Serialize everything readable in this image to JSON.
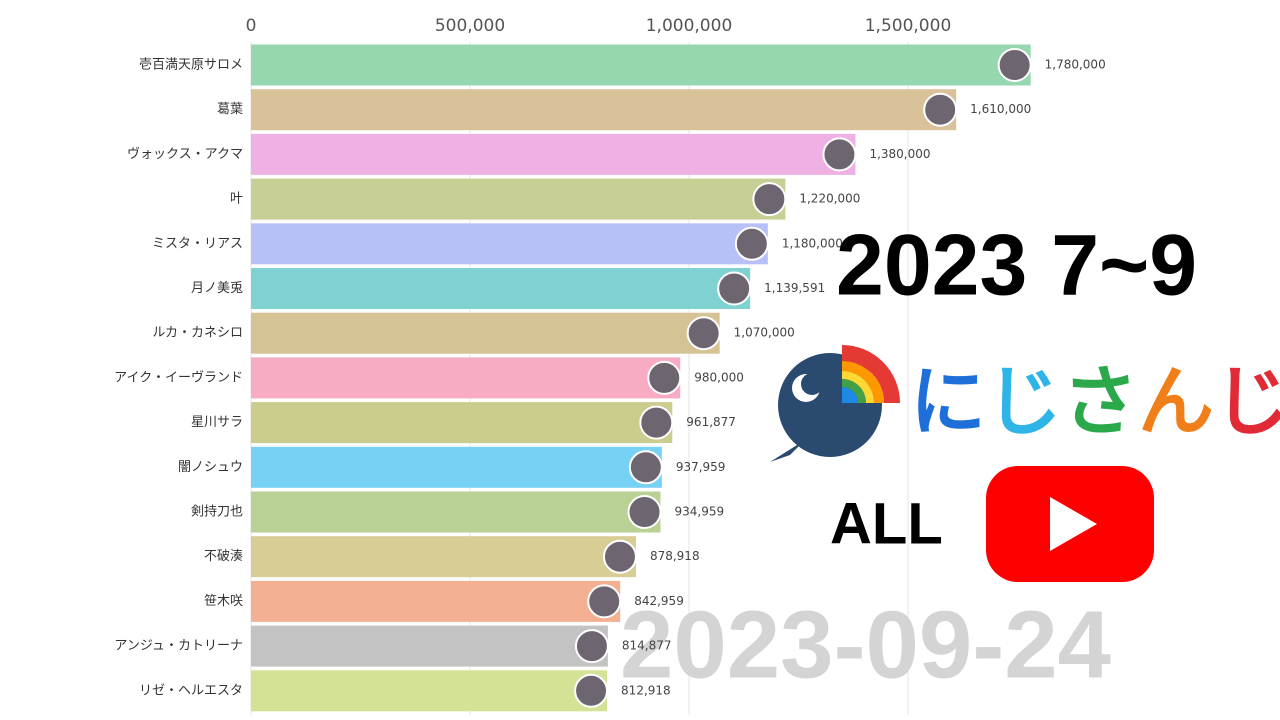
{
  "chart_data": {
    "type": "hbar",
    "title": "2023 7~9",
    "logo_text": [
      "に",
      "じ",
      "さ",
      "ん",
      "じ"
    ],
    "subtitle": "ALL",
    "date_label": "2023-09-24",
    "categories": [
      "壱百満天原サロメ",
      "葛葉",
      "ヴォックス・アクマ",
      "叶",
      "ミスタ・リアス",
      "月ノ美兎",
      "ルカ・カネシロ",
      "アイク・イーヴランド",
      "星川サラ",
      "闇ノシュウ",
      "剣持刀也",
      "不破湊",
      "笹木咲",
      "アンジュ・カトリーナ",
      "リゼ・ヘルエスタ"
    ],
    "values": [
      1780000,
      1610000,
      1380000,
      1220000,
      1180000,
      1139591,
      1070000,
      980000,
      961877,
      937959,
      934959,
      878918,
      842959,
      814877,
      812918
    ],
    "value_labels": [
      "1,780,000",
      "1,610,000",
      "1,380,000",
      "1,220,000",
      "1,180,000",
      "1,139,591",
      "1,070,000",
      "980,000",
      "961,877",
      "937,959",
      "934,959",
      "878,918",
      "842,959",
      "814,877",
      "812,918"
    ],
    "colors": [
      "#96d7b0",
      "#d9c29a",
      "#efb1e3",
      "#c7cf94",
      "#b8c1f7",
      "#7fd2d1",
      "#d5c395",
      "#f7acc4",
      "#cbcd8f",
      "#77d1f4",
      "#b9d195",
      "#d7cd95",
      "#f4b093",
      "#c3c3c3",
      "#d2e395"
    ],
    "xlim": [
      0,
      2000000
    ],
    "xticks": [
      0,
      {
        "value": 500000,
        "label": "500,000"
      },
      {
        "value": 1000000,
        "label": "1,000,000"
      },
      {
        "value": 1500000,
        "label": "1,500,000"
      }
    ],
    "grid": true
  }
}
